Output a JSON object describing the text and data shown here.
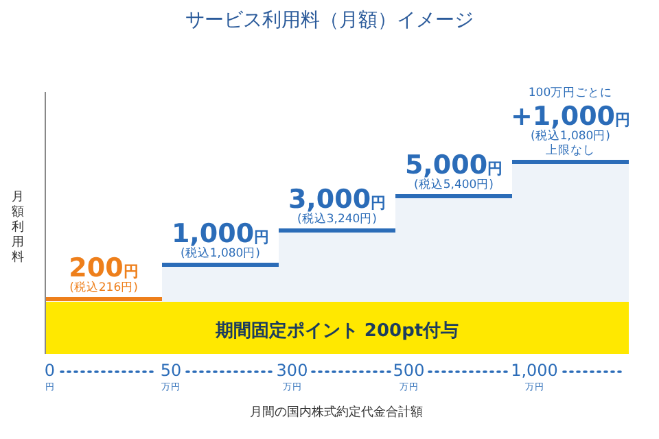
{
  "chart_data": {
    "type": "other",
    "title": "サービス利用料（月額）イメージ",
    "xlabel": "月間の国内株式約定代金合計額",
    "ylabel": "月額利用料",
    "categories": [
      "0円",
      "50万円",
      "300万円",
      "500万円",
      "1,000万円"
    ],
    "values": [
      200,
      1000,
      3000,
      5000,
      null
    ],
    "colors": [
      "#ee7f1b",
      "#2b6cb8",
      "#2b6cb8",
      "#2b6cb8",
      "#2b6cb8"
    ],
    "value_labels": [
      "200円\n(税込216円)",
      "1,000円\n(税込1,080円)",
      "3,000円\n(税込3,240円)",
      "5,000円\n(税込5,400円)",
      "100万円ごとに\n+1,000円\n(税込1,080円)\n上限なし"
    ],
    "annotations": [
      "期間固定ポイント 200pt付与"
    ]
  }
}
